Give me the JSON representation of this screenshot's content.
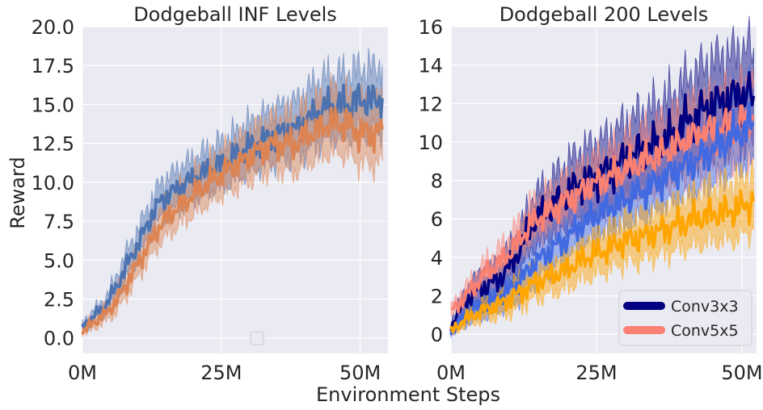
{
  "chart_data": [
    {
      "type": "line",
      "title": "Dodgeball INF Levels",
      "xlabel": "Environment Steps",
      "ylabel": "Reward",
      "xlim": [
        0,
        55
      ],
      "ylim": [
        -1,
        20
      ],
      "xticks": [
        0,
        25,
        50
      ],
      "xtick_labels": [
        "0M",
        "25M",
        "50M"
      ],
      "yticks": [
        0,
        2.5,
        5,
        7.5,
        10,
        12.5,
        15,
        17.5,
        20
      ],
      "ytick_labels": [
        "0.0",
        "2.5",
        "5.0",
        "7.5",
        "10.0",
        "12.5",
        "15.0",
        "17.5",
        "20.0"
      ],
      "legend": {
        "position": "bottom-center",
        "entries": []
      },
      "series": [
        {
          "name": "series-blue",
          "color": "#4c72b0",
          "x": [
            0,
            2,
            4,
            6,
            8,
            10,
            12,
            14,
            16,
            18,
            20,
            22,
            24,
            26,
            28,
            30,
            32,
            34,
            36,
            38,
            40,
            42,
            44,
            46,
            48,
            50,
            52,
            54
          ],
          "mean": [
            0.7,
            1.4,
            2.0,
            3.2,
            4.7,
            6.0,
            7.5,
            8.8,
            9.3,
            9.8,
            10.2,
            10.6,
            11.0,
            11.3,
            11.8,
            12.2,
            12.6,
            12.9,
            13.2,
            13.3,
            13.8,
            14.4,
            14.8,
            14.9,
            15.0,
            15.3,
            15.2,
            15.4
          ],
          "spread": [
            0.3,
            0.4,
            0.5,
            0.7,
            0.9,
            1.0,
            1.1,
            1.2,
            1.2,
            1.3,
            1.3,
            1.4,
            1.4,
            1.5,
            1.5,
            1.6,
            1.6,
            1.7,
            1.7,
            1.8,
            1.9,
            2.0,
            2.0,
            2.0,
            2.1,
            2.1,
            2.1,
            2.2
          ]
        },
        {
          "name": "series-orange",
          "color": "#dd8452",
          "x": [
            0,
            2,
            4,
            6,
            8,
            10,
            12,
            14,
            16,
            18,
            20,
            22,
            24,
            26,
            28,
            30,
            32,
            34,
            36,
            38,
            40,
            42,
            44,
            46,
            48,
            50,
            52,
            54
          ],
          "mean": [
            0.4,
            1.0,
            1.5,
            2.3,
            3.5,
            4.8,
            6.0,
            7.2,
            8.0,
            8.6,
            9.2,
            9.8,
            10.3,
            10.8,
            11.2,
            11.6,
            12.1,
            12.4,
            12.5,
            12.4,
            12.9,
            13.3,
            13.7,
            13.8,
            13.6,
            13.2,
            13.1,
            13.4
          ],
          "spread": [
            0.2,
            0.4,
            0.5,
            0.7,
            0.8,
            0.9,
            1.0,
            1.1,
            1.2,
            1.2,
            1.3,
            1.3,
            1.4,
            1.4,
            1.5,
            1.5,
            1.6,
            1.6,
            1.7,
            1.8,
            1.8,
            1.8,
            1.9,
            1.9,
            1.9,
            2.0,
            2.0,
            2.0
          ]
        }
      ]
    },
    {
      "type": "line",
      "title": "Dodgeball 200 Levels",
      "xlabel": "Environment Steps",
      "ylabel": "",
      "xlim": [
        0,
        52.5
      ],
      "ylim": [
        -1,
        16
      ],
      "xticks": [
        0,
        25,
        50
      ],
      "xtick_labels": [
        "0M",
        "25M",
        "50M"
      ],
      "yticks": [
        0,
        2,
        4,
        6,
        8,
        10,
        12,
        14,
        16
      ],
      "ytick_labels": [
        "0",
        "2",
        "4",
        "6",
        "8",
        "10",
        "12",
        "14",
        "16"
      ],
      "legend": {
        "position": "bottom-right",
        "entries": [
          {
            "label": "Conv3x3",
            "color": "#000080"
          },
          {
            "label": "Conv5x5",
            "color": "#fa8072"
          }
        ]
      },
      "series": [
        {
          "name": "Conv3x3",
          "color": "#000080",
          "x": [
            0,
            2,
            4,
            6,
            8,
            10,
            12,
            14,
            16,
            18,
            20,
            22,
            24,
            26,
            28,
            30,
            32,
            34,
            36,
            38,
            40,
            42,
            44,
            46,
            48,
            50,
            52
          ],
          "mean": [
            0.4,
            1.5,
            2.2,
            2.5,
            2.8,
            3.5,
            4.5,
            5.8,
            6.3,
            6.8,
            7.3,
            7.8,
            8.0,
            8.3,
            8.6,
            9.0,
            9.4,
            9.6,
            10.0,
            10.2,
            11.0,
            11.3,
            11.8,
            12.0,
            12.2,
            12.5,
            12.4
          ],
          "spread": [
            0.3,
            0.5,
            0.7,
            0.8,
            0.9,
            1.0,
            1.1,
            1.3,
            1.4,
            1.5,
            1.6,
            1.7,
            1.8,
            1.8,
            1.9,
            2.0,
            2.0,
            2.1,
            2.1,
            2.2,
            2.2,
            2.3,
            2.3,
            2.4,
            2.4,
            2.4,
            2.5
          ]
        },
        {
          "name": "Conv5x5",
          "color": "#fa8072",
          "x": [
            0,
            2,
            4,
            6,
            8,
            10,
            12,
            14,
            16,
            18,
            20,
            22,
            24,
            26,
            28,
            30,
            32,
            34,
            36,
            38,
            40,
            42,
            44,
            46,
            48,
            50,
            52
          ],
          "mean": [
            1.2,
            1.8,
            2.5,
            3.2,
            3.6,
            4.2,
            5.0,
            5.8,
            6.2,
            6.6,
            7.0,
            7.3,
            7.8,
            8.0,
            8.3,
            8.6,
            8.9,
            9.1,
            9.4,
            9.6,
            10.0,
            10.3,
            10.5,
            10.6,
            10.8,
            11.0,
            11.2
          ],
          "spread": [
            0.3,
            0.5,
            0.6,
            0.7,
            0.8,
            0.9,
            1.0,
            1.1,
            1.1,
            1.2,
            1.2,
            1.3,
            1.3,
            1.4,
            1.4,
            1.5,
            1.5,
            1.6,
            1.6,
            1.7,
            1.7,
            1.8,
            1.8,
            1.9,
            1.9,
            1.9,
            2.0
          ]
        },
        {
          "name": "series-royalblue",
          "color": "#4169e1",
          "x": [
            0,
            2,
            4,
            6,
            8,
            10,
            12,
            14,
            16,
            18,
            20,
            22,
            24,
            26,
            28,
            30,
            32,
            34,
            36,
            38,
            40,
            42,
            44,
            46,
            48,
            50,
            52
          ],
          "mean": [
            0.2,
            0.8,
            1.3,
            1.5,
            1.9,
            2.3,
            2.8,
            3.6,
            4.1,
            4.6,
            5.0,
            5.6,
            6.0,
            6.4,
            6.7,
            7.0,
            7.3,
            7.6,
            8.0,
            8.4,
            8.7,
            9.0,
            9.4,
            9.8,
            10.2,
            10.6,
            11.0
          ],
          "spread": [
            0.2,
            0.4,
            0.5,
            0.6,
            0.7,
            0.8,
            0.9,
            1.0,
            1.0,
            1.1,
            1.1,
            1.2,
            1.2,
            1.3,
            1.3,
            1.4,
            1.4,
            1.5,
            1.5,
            1.6,
            1.6,
            1.7,
            1.7,
            1.8,
            1.8,
            1.9,
            1.9
          ]
        },
        {
          "name": "series-orange",
          "color": "#ffa500",
          "x": [
            0,
            2,
            4,
            6,
            8,
            10,
            12,
            14,
            16,
            18,
            20,
            22,
            24,
            26,
            28,
            30,
            32,
            34,
            36,
            38,
            40,
            42,
            44,
            46,
            48,
            50,
            52
          ],
          "mean": [
            0.1,
            0.7,
            1.0,
            1.3,
            1.5,
            1.8,
            2.2,
            2.6,
            2.9,
            3.1,
            3.4,
            3.8,
            4.1,
            4.3,
            4.6,
            4.9,
            5.0,
            5.2,
            5.4,
            5.6,
            5.8,
            6.0,
            6.2,
            6.3,
            6.4,
            6.6,
            6.9
          ],
          "spread": [
            0.2,
            0.3,
            0.4,
            0.5,
            0.6,
            0.7,
            0.8,
            0.8,
            0.9,
            0.9,
            1.0,
            1.0,
            1.1,
            1.1,
            1.1,
            1.2,
            1.2,
            1.2,
            1.3,
            1.3,
            1.3,
            1.4,
            1.4,
            1.4,
            1.5,
            1.5,
            1.5
          ]
        }
      ]
    }
  ]
}
